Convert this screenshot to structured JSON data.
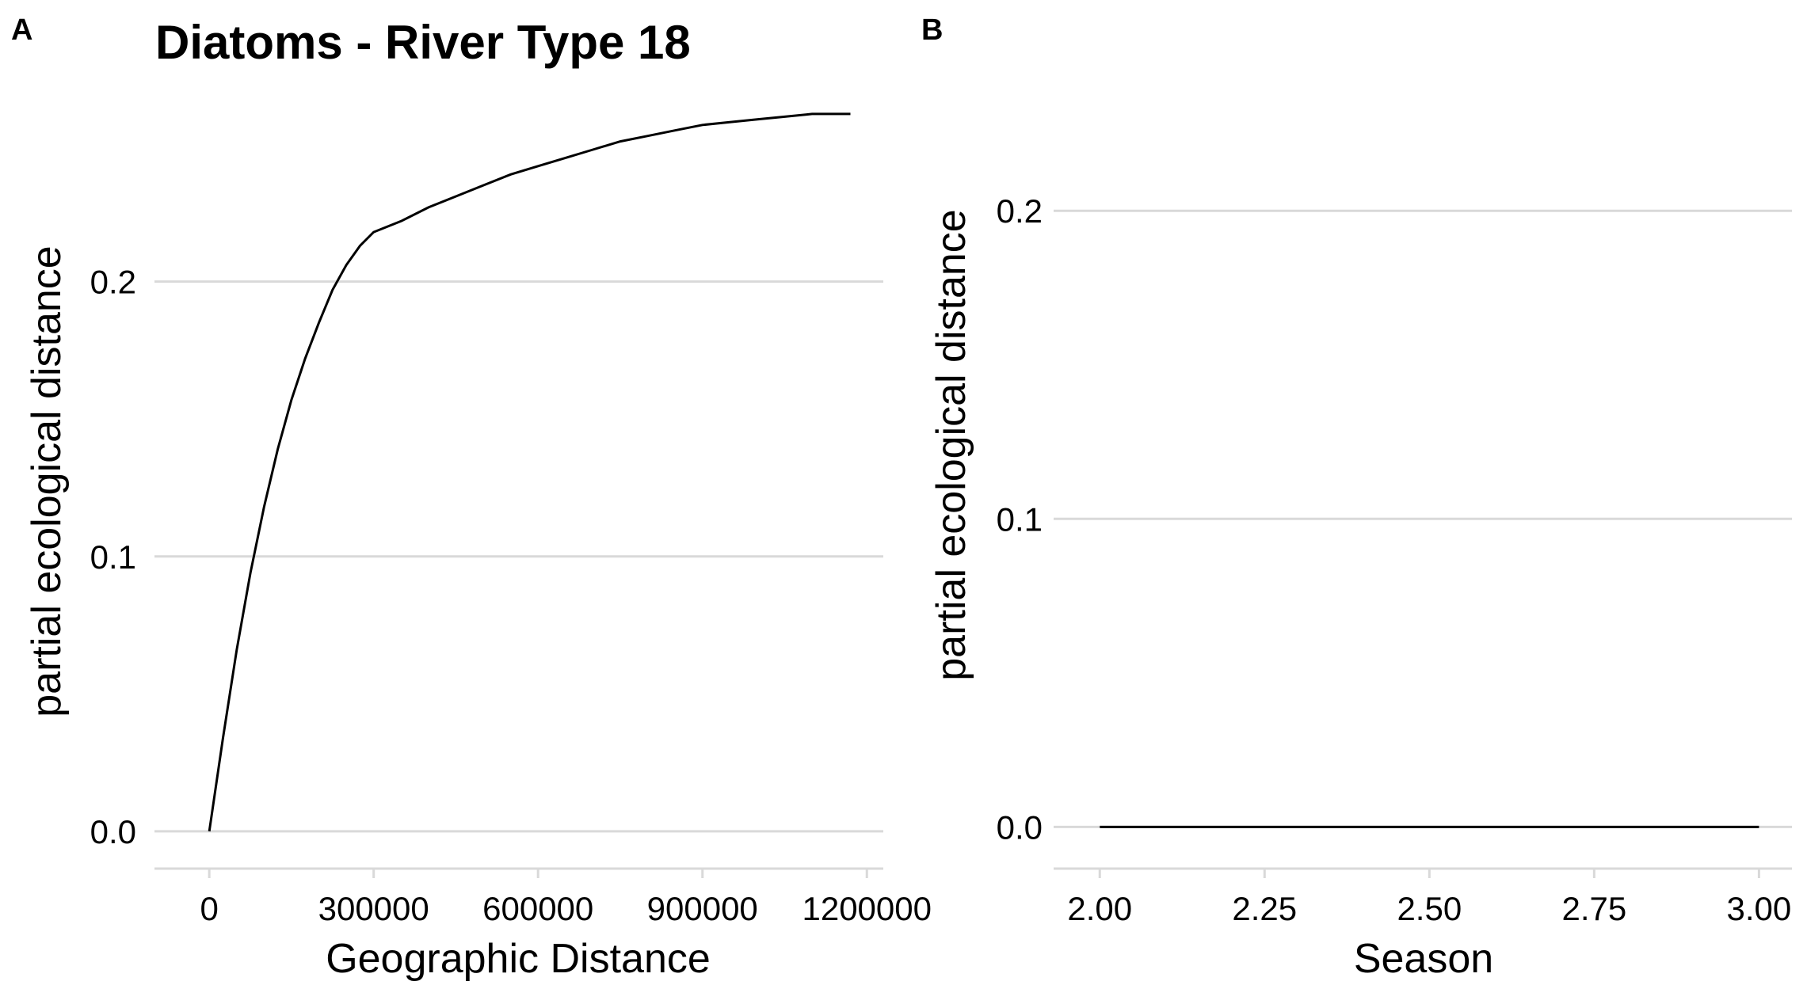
{
  "chart_data": [
    {
      "panel_label": "A",
      "title": "Diatoms - River Type 18",
      "type": "line",
      "xlabel": "Geographic Distance",
      "ylabel": "partial ecological distance",
      "xlim": [
        -100000,
        1230000
      ],
      "ylim": [
        -0.013,
        0.265
      ],
      "x_ticks": [
        0,
        300000,
        600000,
        900000,
        1200000
      ],
      "x_tick_labels": [
        "0",
        "300000",
        "600000",
        "900000",
        "1200000"
      ],
      "y_ticks": [
        0.0,
        0.1,
        0.2
      ],
      "y_tick_labels": [
        "0.0",
        "0.1",
        "0.2"
      ],
      "grid": "horizontal",
      "series": [
        {
          "x": [
            0,
            25000,
            50000,
            75000,
            100000,
            125000,
            150000,
            175000,
            200000,
            225000,
            250000,
            275000,
            300000,
            350000,
            400000,
            450000,
            500000,
            550000,
            600000,
            650000,
            700000,
            750000,
            800000,
            850000,
            900000,
            950000,
            1000000,
            1050000,
            1100000,
            1150000,
            1170000
          ],
          "y": [
            0.0,
            0.034,
            0.066,
            0.094,
            0.118,
            0.139,
            0.157,
            0.172,
            0.185,
            0.197,
            0.206,
            0.213,
            0.218,
            0.222,
            0.227,
            0.231,
            0.235,
            0.239,
            0.242,
            0.245,
            0.248,
            0.251,
            0.253,
            0.255,
            0.257,
            0.258,
            0.259,
            0.26,
            0.261,
            0.261,
            0.261
          ]
        }
      ]
    },
    {
      "panel_label": "B",
      "type": "line",
      "xlabel": "Season",
      "ylabel": "partial ecological distance",
      "xlim": [
        1.93,
        3.05
      ],
      "ylim": [
        -0.013,
        0.235
      ],
      "x_ticks": [
        2.0,
        2.25,
        2.5,
        2.75,
        3.0
      ],
      "x_tick_labels": [
        "2.00",
        "2.25",
        "2.50",
        "2.75",
        "3.00"
      ],
      "y_ticks": [
        0.0,
        0.1,
        0.2
      ],
      "y_tick_labels": [
        "0.0",
        "0.1",
        "0.2"
      ],
      "grid": "horizontal",
      "series": [
        {
          "x": [
            2.0,
            3.0
          ],
          "y": [
            0.0,
            0.0
          ]
        }
      ]
    }
  ],
  "colors": {
    "line": "#000000",
    "grid": "#d9d9d9",
    "axis": "#d9d9d9",
    "text": "#000000"
  }
}
